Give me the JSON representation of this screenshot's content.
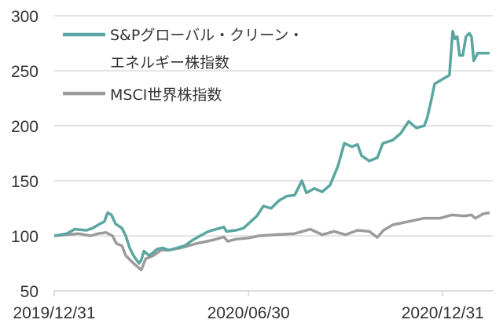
{
  "chart_data": {
    "type": "line",
    "title": "",
    "xlabel": "",
    "ylabel": "",
    "x_unit": "months since 2019/12/31",
    "xlim": [
      0,
      13.45
    ],
    "ylim": [
      50,
      300
    ],
    "yticks": [
      50,
      100,
      150,
      200,
      250,
      300
    ],
    "xticks": [
      {
        "x": 0,
        "label": "2019/12/31"
      },
      {
        "x": 6,
        "label": "2020/06/30"
      },
      {
        "x": 12,
        "label": "2020/12/31"
      }
    ],
    "grid": true,
    "legend_position": "top-left",
    "series": [
      {
        "name_lines": [
          "S&Pグローバル・クリーン・",
          "エネルギー株指数"
        ],
        "name": "S&Pグローバル・クリーン・エネルギー株指数",
        "color": "#5ba6a1",
        "x": [
          0,
          0.39,
          0.63,
          1.0,
          1.19,
          1.36,
          1.55,
          1.65,
          1.77,
          1.89,
          2.09,
          2.21,
          2.33,
          2.45,
          2.62,
          2.69,
          2.77,
          2.94,
          3.18,
          3.35,
          3.54,
          3.79,
          4.03,
          4.27,
          4.51,
          4.76,
          5.24,
          5.32,
          5.61,
          5.85,
          6.0,
          6.26,
          6.46,
          6.7,
          6.94,
          7.18,
          7.43,
          7.65,
          7.79,
          8.03,
          8.28,
          8.52,
          8.76,
          8.96,
          9.2,
          9.37,
          9.49,
          9.73,
          9.98,
          10.15,
          10.46,
          10.7,
          10.95,
          11.19,
          11.43,
          11.52,
          11.63,
          11.75,
          12.09,
          12.21,
          12.23,
          12.31,
          12.38,
          12.45,
          12.52,
          12.62,
          12.72,
          12.82,
          12.89,
          12.96,
          13.08,
          13.45
        ],
        "values": [
          100,
          102,
          106,
          105,
          107,
          110,
          113,
          121,
          119,
          111,
          107,
          100,
          89,
          82,
          75,
          78,
          86,
          82,
          88,
          89,
          87,
          89,
          91,
          96,
          100,
          104,
          108,
          104,
          105,
          107,
          111,
          118,
          127,
          125,
          132,
          136,
          137,
          150,
          139,
          143,
          140,
          146,
          163,
          184,
          181,
          183,
          173,
          168,
          171,
          184,
          187,
          193,
          204,
          198,
          200,
          207,
          221,
          238,
          244,
          246,
          255,
          286,
          279,
          281,
          264,
          264,
          281,
          284,
          281,
          259,
          266,
          266
        ]
      },
      {
        "name": "MSCI世界株指数",
        "color": "#9b9b9b",
        "x": [
          0,
          0.75,
          1.12,
          1.36,
          1.6,
          1.8,
          1.92,
          2.09,
          2.21,
          2.45,
          2.69,
          2.82,
          3.06,
          3.3,
          3.54,
          3.91,
          4.39,
          4.88,
          5.24,
          5.36,
          5.61,
          6.0,
          6.33,
          6.82,
          7.43,
          7.91,
          8.28,
          8.64,
          9.0,
          9.37,
          9.73,
          9.98,
          10.17,
          10.46,
          10.95,
          11.43,
          11.92,
          12.28,
          12.65,
          12.89,
          13.01,
          13.25,
          13.45
        ],
        "values": [
          100,
          102,
          100,
          102,
          103,
          100,
          93,
          91,
          82,
          75,
          69,
          79,
          82,
          87,
          87,
          89,
          93,
          96,
          99,
          95,
          97,
          98,
          100,
          101,
          102,
          106,
          101,
          104,
          101,
          105,
          104,
          98.6,
          105,
          110,
          113,
          116,
          116,
          119,
          118,
          119,
          116,
          120,
          121
        ]
      }
    ]
  }
}
